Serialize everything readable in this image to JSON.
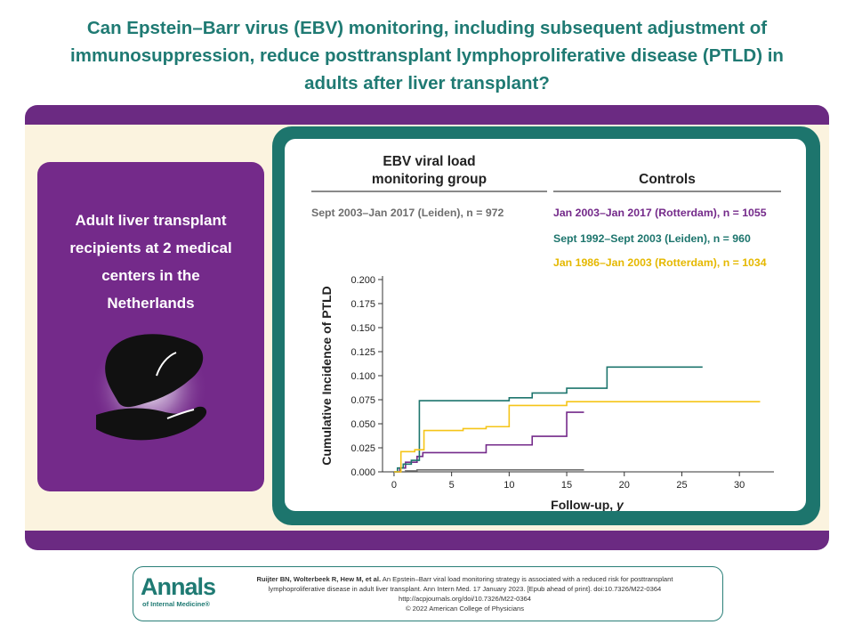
{
  "title_lines": [
    "Can Epstein–Barr virus (EBV) monitoring, including subsequent adjustment of",
    "immunosuppression, reduce posttransplant lymphoproliferative disease (PTLD) in",
    "adults after liver transplant?"
  ],
  "population": {
    "lines": [
      "Adult liver transplant",
      "recipients at 2 medical",
      "centers in the",
      "Netherlands"
    ]
  },
  "groups": {
    "monitoring_header_lines": [
      "EBV viral load",
      "monitoring group"
    ],
    "controls_header": "Controls"
  },
  "colors": {
    "teal": "#1d756d",
    "purple": "#742a8a",
    "yellow": "#f5c518",
    "gray": "#6e6e6e"
  },
  "chart_data": {
    "type": "line",
    "step": true,
    "xlabel": "Follow-up, y",
    "ylabel": "Cumulative Incidence of PTLD",
    "xlim": [
      -1,
      33
    ],
    "ylim": [
      0,
      0.2
    ],
    "xticks": [
      0,
      5,
      10,
      15,
      20,
      25,
      30
    ],
    "yticks": [
      0.0,
      0.025,
      0.05,
      0.075,
      0.1,
      0.125,
      0.15,
      0.175,
      0.2
    ],
    "ytick_labels": [
      "0.000",
      "0.025",
      "0.050",
      "0.075",
      "0.100",
      "0.125",
      "0.150",
      "0.175",
      "0.200"
    ],
    "series": [
      {
        "name": "Sept 2003–Jan 2017 (Leiden), n = 972",
        "color": "#6e6e6e",
        "x": [
          0,
          1.0,
          2.0,
          16.5
        ],
        "y": [
          0,
          0.001,
          0.002,
          0.002
        ]
      },
      {
        "name": "Jan 2003–Jan 2017 (Rotterdam), n = 1055",
        "color": "#742a8a",
        "x": [
          0,
          0.5,
          1.0,
          2.0,
          2.5,
          4.0,
          8.0,
          12.0,
          15.0,
          16.5
        ],
        "y": [
          0,
          0.004,
          0.01,
          0.016,
          0.02,
          0.02,
          0.028,
          0.037,
          0.062,
          0.062
        ]
      },
      {
        "name": "Sept 1992–Sept 2003 (Leiden), n = 960",
        "color": "#1d756d",
        "x": [
          0,
          0.3,
          0.8,
          1.5,
          2.2,
          10.0,
          12.0,
          15.0,
          18.5,
          26.8
        ],
        "y": [
          0,
          0.004,
          0.008,
          0.012,
          0.074,
          0.077,
          0.082,
          0.087,
          0.109,
          0.109
        ]
      },
      {
        "name": "Jan 1986–Jan 2003 (Rotterdam), n = 1034",
        "color": "#f5c518",
        "x": [
          0,
          0.6,
          1.8,
          2.6,
          6.0,
          8.0,
          10.0,
          15.0,
          31.8
        ],
        "y": [
          0,
          0.021,
          0.023,
          0.043,
          0.045,
          0.047,
          0.069,
          0.073,
          0.073
        ]
      }
    ]
  },
  "citation": {
    "logo_main": "Annals",
    "logo_sub": "of Internal Medicine®",
    "authors": "Ruijter BN, Wolterbeek R, Hew M, et al.",
    "line1_rest": " An Epstein–Barr viral load monitoring strategy is associated with a reduced risk for posttransplant",
    "line2": "lymphoproliferative disease in adult liver transplant. Ann Intern Med. 17 January 2023. [Epub ahead of print]. doi:10.7326/M22-0364",
    "line3": "http://acpjournals.org/doi/10.7326/M22-0364",
    "line4": "© 2022 American College of Physicians"
  }
}
